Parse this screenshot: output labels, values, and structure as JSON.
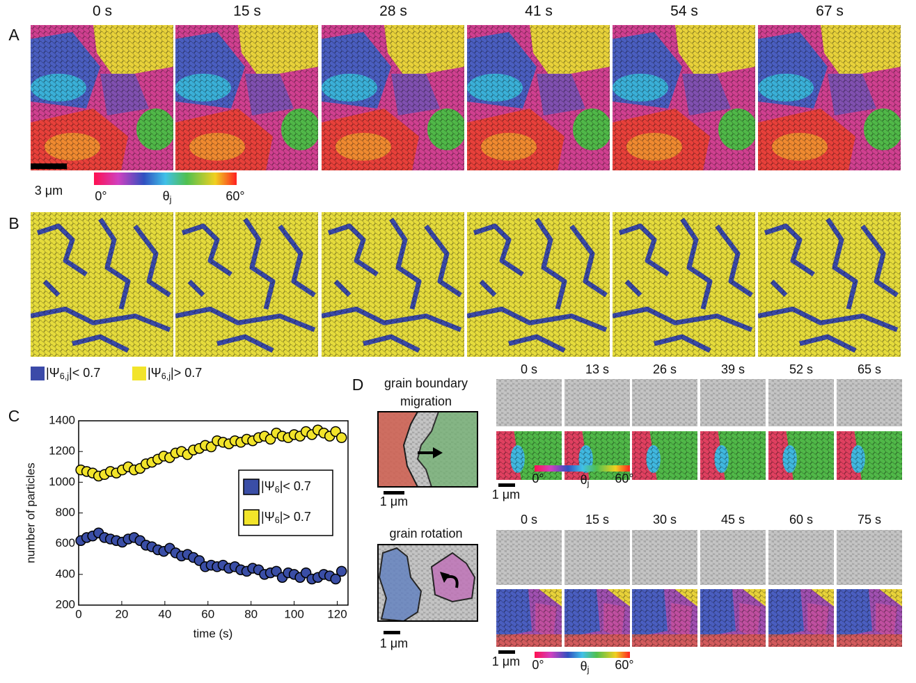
{
  "panel_labels": {
    "a": "A",
    "b": "B",
    "c": "C",
    "d": "D"
  },
  "panel_a": {
    "times": [
      "0 s",
      "15 s",
      "28 s",
      "41 s",
      "54 s",
      "67 s"
    ],
    "scale_bar": "3 μm",
    "colorbar": {
      "min": "0°",
      "label": "θj",
      "max": "60°"
    }
  },
  "panel_b": {
    "legend": [
      "|Ψ6,j|< 0.7",
      "|Ψ6,j|> 0.7"
    ]
  },
  "chart_data": {
    "type": "scatter",
    "xlabel": "time (s)",
    "ylabel": "number of particles",
    "x": [
      1,
      3.75,
      6.5,
      9.25,
      12,
      14.75,
      17.5,
      20.25,
      23,
      25.75,
      28.5,
      31.25,
      34,
      36.75,
      39.5,
      42.25,
      45,
      47.75,
      50.5,
      53.25,
      56,
      58.75,
      61.5,
      64.25,
      67,
      69.75,
      72.5,
      75.25,
      78,
      80.75,
      83.5,
      86.25,
      89,
      91.75,
      94.5,
      97.25,
      100,
      102.75,
      105.5,
      108.25,
      111,
      113.75,
      116.5,
      119.25,
      122
    ],
    "series": [
      {
        "name": "|Ψ6|< 0.7",
        "color": "#3a4ea6",
        "values": [
          620,
          640,
          650,
          670,
          640,
          630,
          620,
          610,
          630,
          640,
          620,
          590,
          580,
          560,
          550,
          570,
          540,
          520,
          530,
          510,
          490,
          450,
          460,
          450,
          460,
          440,
          450,
          430,
          420,
          440,
          430,
          400,
          410,
          420,
          380,
          410,
          400,
          380,
          410,
          370,
          380,
          400,
          390,
          370,
          420
        ]
      },
      {
        "name": "|Ψ6|> 0.7",
        "color": "#f2e42a",
        "values": [
          1080,
          1070,
          1060,
          1040,
          1050,
          1070,
          1060,
          1080,
          1100,
          1080,
          1090,
          1120,
          1130,
          1150,
          1170,
          1160,
          1190,
          1200,
          1180,
          1210,
          1220,
          1240,
          1230,
          1270,
          1260,
          1250,
          1270,
          1260,
          1280,
          1270,
          1290,
          1300,
          1280,
          1320,
          1300,
          1290,
          1310,
          1300,
          1330,
          1310,
          1340,
          1320,
          1300,
          1330,
          1290
        ]
      }
    ],
    "xlim": [
      0,
      125
    ],
    "ylim": [
      200,
      1400
    ],
    "xticks": [
      0,
      20,
      40,
      60,
      80,
      100,
      120
    ],
    "yticks": [
      200,
      400,
      600,
      800,
      1000,
      1200,
      1400
    ]
  },
  "panel_d": {
    "migration": {
      "title": [
        "grain boundary",
        "migration"
      ],
      "scale_bar": "1 μm",
      "times": [
        "0 s",
        "13 s",
        "26 s",
        "39 s",
        "52 s",
        "65 s"
      ],
      "sequence_scale_bar": "1 μm",
      "colorbar": {
        "min": "0°",
        "label": "θj",
        "max": "60°"
      }
    },
    "rotation": {
      "title": "grain rotation",
      "scale_bar": "1 μm",
      "times": [
        "0 s",
        "15 s",
        "30 s",
        "45 s",
        "60 s",
        "75 s"
      ],
      "sequence_scale_bar": "1 μm",
      "colorbar": {
        "min": "0°",
        "label": "θj",
        "max": "60°"
      }
    }
  }
}
